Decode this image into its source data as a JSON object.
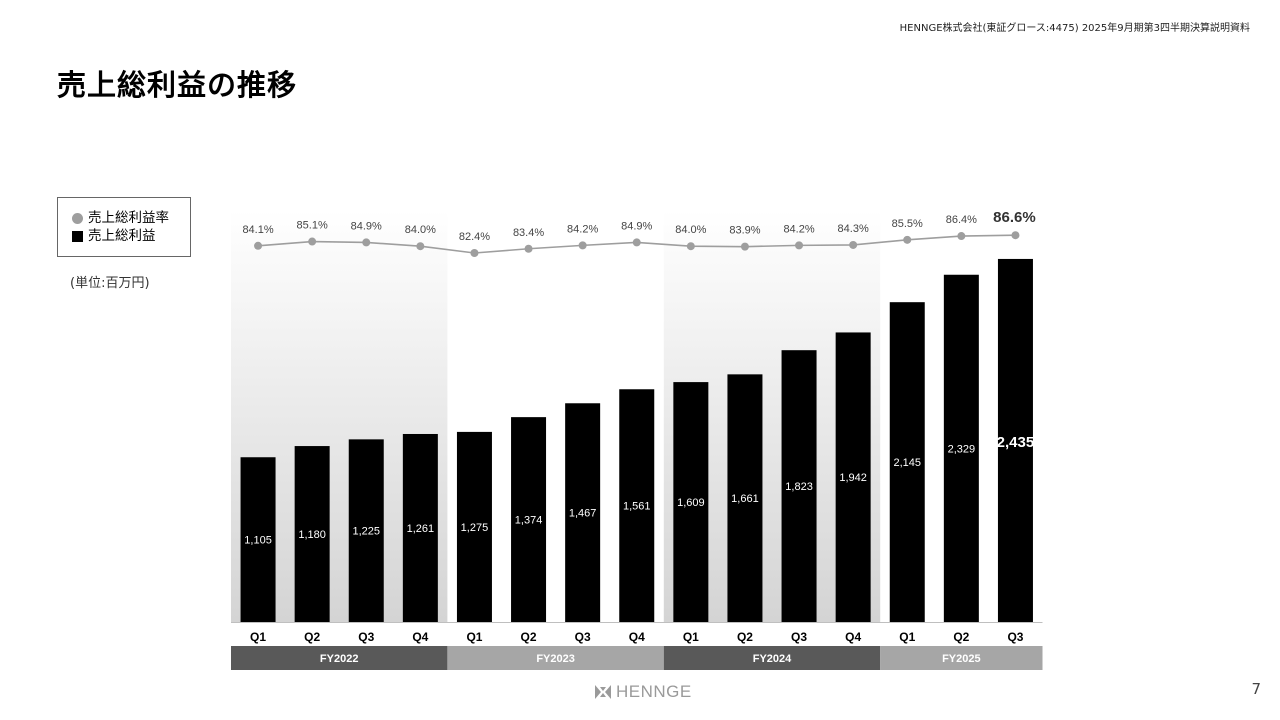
{
  "header": {
    "note": "HENNGE株式会社(東証グロース:4475) 2025年9月期第3四半期決算説明資料",
    "title": "売上総利益の推移"
  },
  "legend": {
    "items": [
      {
        "label": "売上総利益率",
        "marker": "circle",
        "color": "#9e9e9e"
      },
      {
        "label": "売上総利益",
        "marker": "square",
        "color": "#000000"
      }
    ]
  },
  "unit_note": "(単位:百万円)",
  "chart_data": {
    "type": "bar",
    "categories": [
      "Q1",
      "Q2",
      "Q3",
      "Q4",
      "Q1",
      "Q2",
      "Q3",
      "Q4",
      "Q1",
      "Q2",
      "Q3",
      "Q4",
      "Q1",
      "Q2",
      "Q3"
    ],
    "fiscal_years": [
      {
        "label": "FY2022",
        "span": 4,
        "color": "#595959",
        "band": "#dcdcdc"
      },
      {
        "label": "FY2023",
        "span": 4,
        "color": "#a6a6a6",
        "band": "#ffffff"
      },
      {
        "label": "FY2024",
        "span": 4,
        "color": "#595959",
        "band": "#dcdcdc"
      },
      {
        "label": "FY2025",
        "span": 3,
        "color": "#a6a6a6",
        "band": "#ffffff"
      }
    ],
    "series": [
      {
        "name": "売上総利益",
        "type": "bar",
        "color": "#000000",
        "values": [
          1105,
          1180,
          1225,
          1261,
          1275,
          1374,
          1467,
          1561,
          1609,
          1661,
          1823,
          1942,
          2145,
          2329,
          2435
        ],
        "labels": [
          "1,105",
          "1,180",
          "1,225",
          "1,261",
          "1,275",
          "1,374",
          "1,467",
          "1,561",
          "1,609",
          "1,661",
          "1,823",
          "1,942",
          "2,145",
          "2,329",
          "2,435"
        ]
      },
      {
        "name": "売上総利益率",
        "type": "line",
        "color": "#9e9e9e",
        "values": [
          84.1,
          85.1,
          84.9,
          84.0,
          82.4,
          83.4,
          84.2,
          84.9,
          84.0,
          83.9,
          84.2,
          84.3,
          85.5,
          86.4,
          86.6
        ],
        "labels": [
          "84.1%",
          "85.1%",
          "84.9%",
          "84.0%",
          "82.4%",
          "83.4%",
          "84.2%",
          "84.9%",
          "84.0%",
          "83.9%",
          "84.2%",
          "84.3%",
          "85.5%",
          "86.4%",
          "86.6%"
        ]
      }
    ],
    "highlight_last": true
  },
  "footer": {
    "logo_text": "HENNGE",
    "page_number": "7"
  }
}
